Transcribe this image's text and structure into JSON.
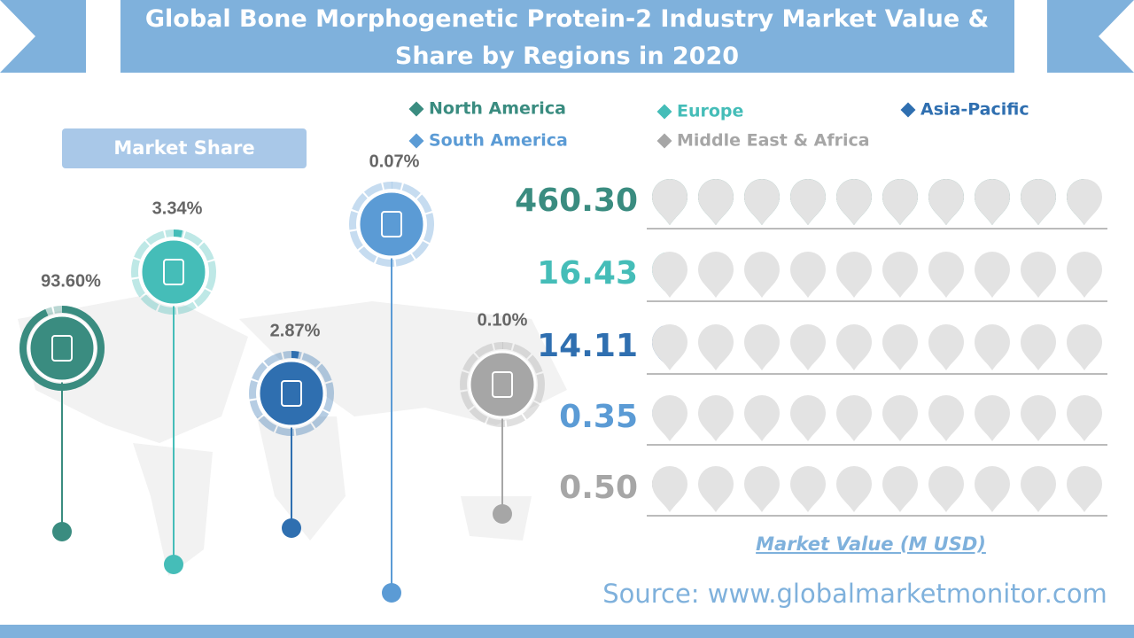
{
  "title": "Global Bone Morphogenetic Protein-2 Industry Market Value & Share by Regions in 2020",
  "source": "Source: www.globalmarketmonitor.com",
  "chart_data": [
    {
      "type": "radial",
      "title": "Market Share",
      "values": [
        93.6,
        3.34,
        2.87,
        0.07,
        0.1
      ],
      "value_labels": [
        "93.60%",
        "3.34%",
        "2.87%",
        "0.07%",
        "0.10%"
      ],
      "ylim": [
        0,
        100
      ]
    },
    {
      "type": "pictorial",
      "title": "Market Value (M USD)",
      "categories": [
        "North America",
        "Europe",
        "Asia-Pacific",
        "South America",
        "Middle East & Africa"
      ],
      "colors": [
        "#3a8c80",
        "#45bdb8",
        "#2f6fb0",
        "#5b9bd5",
        "#a6a6a6"
      ],
      "values": [
        460.3,
        16.43,
        14.11,
        0.35,
        0.5
      ],
      "value_labels": [
        "460.30",
        "16.43",
        "14.11",
        "0.35",
        "0.50"
      ],
      "xlim": [
        0,
        484.5
      ]
    }
  ]
}
